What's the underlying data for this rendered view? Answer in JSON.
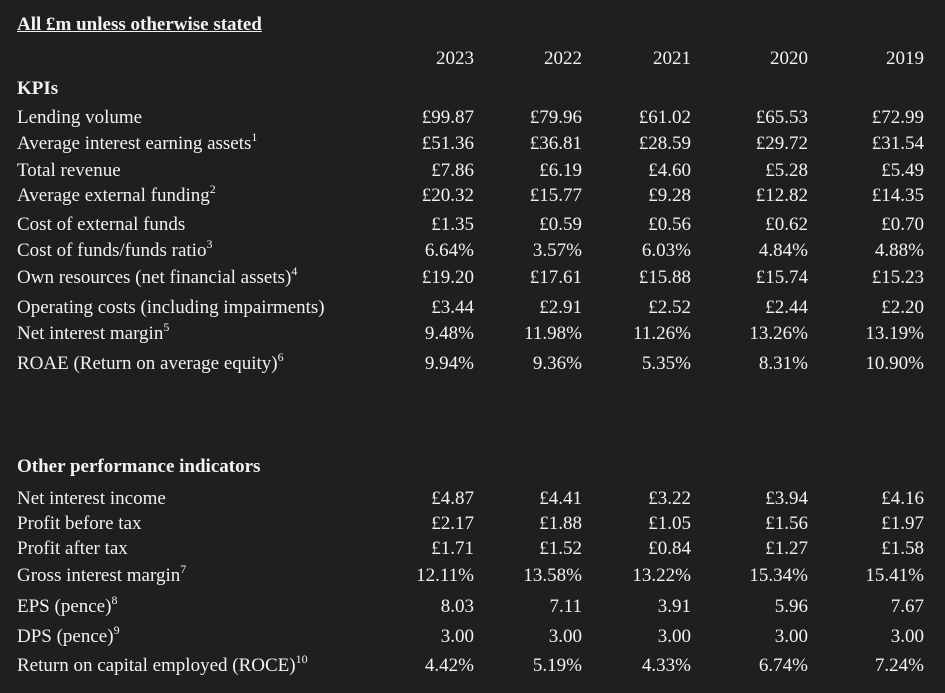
{
  "header": {
    "title": "All £m unless otherwise stated",
    "years": [
      "2023",
      "2022",
      "2021",
      "2020",
      "2019"
    ]
  },
  "kpis": {
    "title": "KPIs",
    "rows": [
      {
        "label": "Lending volume",
        "note": "",
        "values": [
          "£99.87",
          "£79.96",
          "£61.02",
          "£65.53",
          "£72.99"
        ]
      },
      {
        "label": "Average interest earning assets",
        "note": "1",
        "values": [
          "£51.36",
          "£36.81",
          "£28.59",
          "£29.72",
          "£31.54"
        ]
      },
      {
        "label": "Total revenue",
        "note": "",
        "values": [
          "£7.86",
          "£6.19",
          "£4.60",
          "£5.28",
          "£5.49"
        ]
      },
      {
        "label": "Average external funding",
        "note": "2",
        "values": [
          "£20.32",
          "£15.77",
          "£9.28",
          "£12.82",
          "£14.35"
        ]
      },
      {
        "label": "Cost of external funds",
        "note": "",
        "values": [
          "£1.35",
          "£0.59",
          "£0.56",
          "£0.62",
          "£0.70"
        ]
      },
      {
        "label": "Cost of funds/funds ratio",
        "note": "3",
        "values": [
          "6.64%",
          "3.57%",
          "6.03%",
          "4.84%",
          "4.88%"
        ]
      },
      {
        "label": "Own resources (net financial assets)",
        "note": "4",
        "values": [
          "£19.20",
          "£17.61",
          "£15.88",
          "£15.74",
          "£15.23"
        ]
      },
      {
        "label": "Operating costs (including impairments)",
        "note": "",
        "values": [
          "£3.44",
          "£2.91",
          "£2.52",
          "£2.44",
          "£2.20"
        ]
      },
      {
        "label": "Net interest margin",
        "note": "5",
        "values": [
          "9.48%",
          "11.98%",
          "11.26%",
          "13.26%",
          "13.19%"
        ]
      },
      {
        "label": "ROAE (Return on average equity)",
        "note": "6",
        "values": [
          "9.94%",
          "9.36%",
          "5.35%",
          "8.31%",
          "10.90%"
        ]
      }
    ]
  },
  "other": {
    "title": "Other performance indicators",
    "rows": [
      {
        "label": "Net interest income",
        "note": "",
        "values": [
          "£4.87",
          "£4.41",
          "£3.22",
          "£3.94",
          "£4.16"
        ]
      },
      {
        "label": "Profit before tax",
        "note": "",
        "values": [
          "£2.17",
          "£1.88",
          "£1.05",
          "£1.56",
          "£1.97"
        ]
      },
      {
        "label": "Profit after tax",
        "note": "",
        "values": [
          "£1.71",
          "£1.52",
          "£0.84",
          "£1.27",
          "£1.58"
        ]
      },
      {
        "label": "Gross interest margin",
        "note": "7",
        "values": [
          "12.11%",
          "13.58%",
          "13.22%",
          "15.34%",
          "15.41%"
        ]
      },
      {
        "label": "EPS (pence)",
        "note": "8",
        "values": [
          "8.03",
          "7.11",
          "3.91",
          "5.96",
          "7.67"
        ]
      },
      {
        "label": "DPS (pence)",
        "note": "9",
        "values": [
          "3.00",
          "3.00",
          "3.00",
          "3.00",
          "3.00"
        ]
      },
      {
        "label": "Return on capital employed (ROCE)",
        "note": "10",
        "values": [
          "4.42%",
          "5.19%",
          "4.33%",
          "6.74%",
          "7.24%"
        ]
      }
    ]
  }
}
